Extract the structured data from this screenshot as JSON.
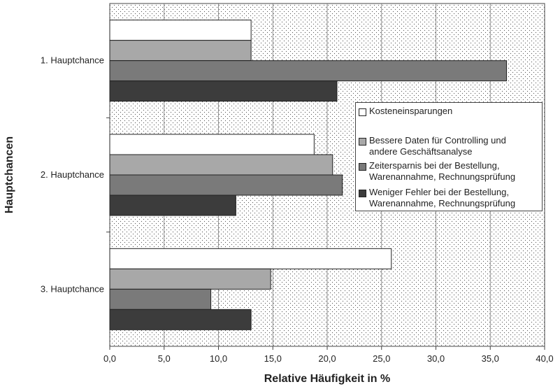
{
  "chart_data": {
    "type": "bar",
    "orientation": "horizontal",
    "categories": [
      "1. Hauptchance",
      "2. Hauptchance",
      "3. Hauptchance"
    ],
    "series": [
      {
        "name": "Kosteneinsparungen",
        "values": [
          13.0,
          18.8,
          25.9
        ],
        "color": "#ffffff"
      },
      {
        "name": "Bessere Daten für Controlling und\nandere Geschäftsanalyse",
        "values": [
          13.0,
          20.5,
          14.8
        ],
        "color": "#a8a8a8"
      },
      {
        "name": "Zeitersparnis bei der Bestellung,\nWarenannahme, Rechnungsprüfung",
        "values": [
          36.5,
          21.4,
          9.3
        ],
        "color": "#7a7a7a"
      },
      {
        "name": "Weniger Fehler bei der Bestellung,\nWarenannahme, Rechnungsprüfung",
        "values": [
          20.9,
          11.6,
          13.0
        ],
        "color": "#3c3c3c"
      }
    ],
    "xlabel": "Relative Häufigkeit in %",
    "ylabel": "Hauptchancen",
    "xlim": [
      0,
      40
    ],
    "xticks": [
      "0,0",
      "5,0",
      "10,0",
      "15,0",
      "20,0",
      "25,0",
      "30,0",
      "35,0",
      "40,0"
    ],
    "grid": "vertical",
    "legend_position": "right"
  }
}
